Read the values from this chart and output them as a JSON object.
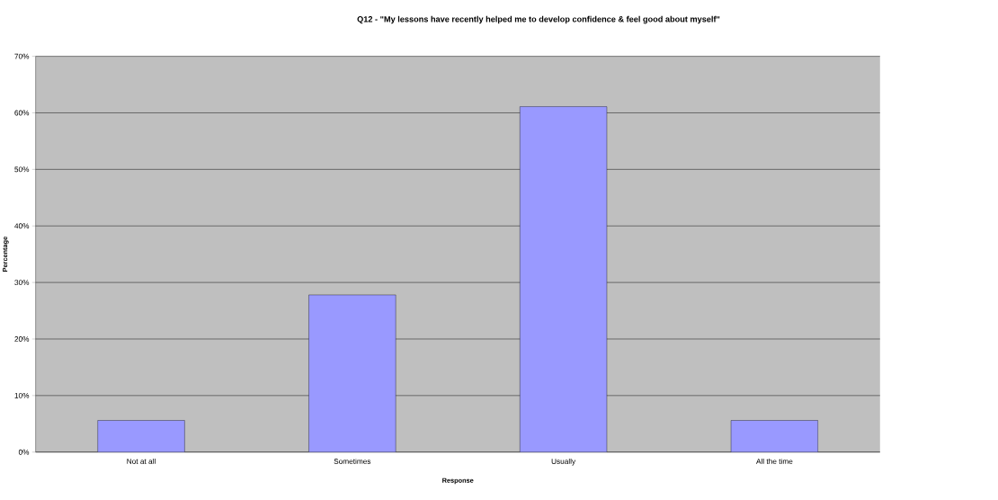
{
  "chart_data": {
    "type": "bar",
    "title": "Q12 - \"My lessons have recently helped me to develop confidence & feel good about myself\"",
    "xlabel": "Response",
    "ylabel": "Percentage",
    "categories": [
      "Not at all",
      "Sometimes",
      "Usually",
      "All the time"
    ],
    "values": [
      5.6,
      27.8,
      61.1,
      5.6
    ],
    "color": "#9999ff",
    "ylim": [
      0,
      70
    ],
    "yticks": [
      {
        "value": 0,
        "label": "0%"
      },
      {
        "value": 10,
        "label": "10%"
      },
      {
        "value": 20,
        "label": "20%"
      },
      {
        "value": 30,
        "label": "30%"
      },
      {
        "value": 40,
        "label": "40%"
      },
      {
        "value": 50,
        "label": "50%"
      },
      {
        "value": 60,
        "label": "60%"
      },
      {
        "value": 70,
        "label": "70%"
      }
    ],
    "grid": "y"
  }
}
